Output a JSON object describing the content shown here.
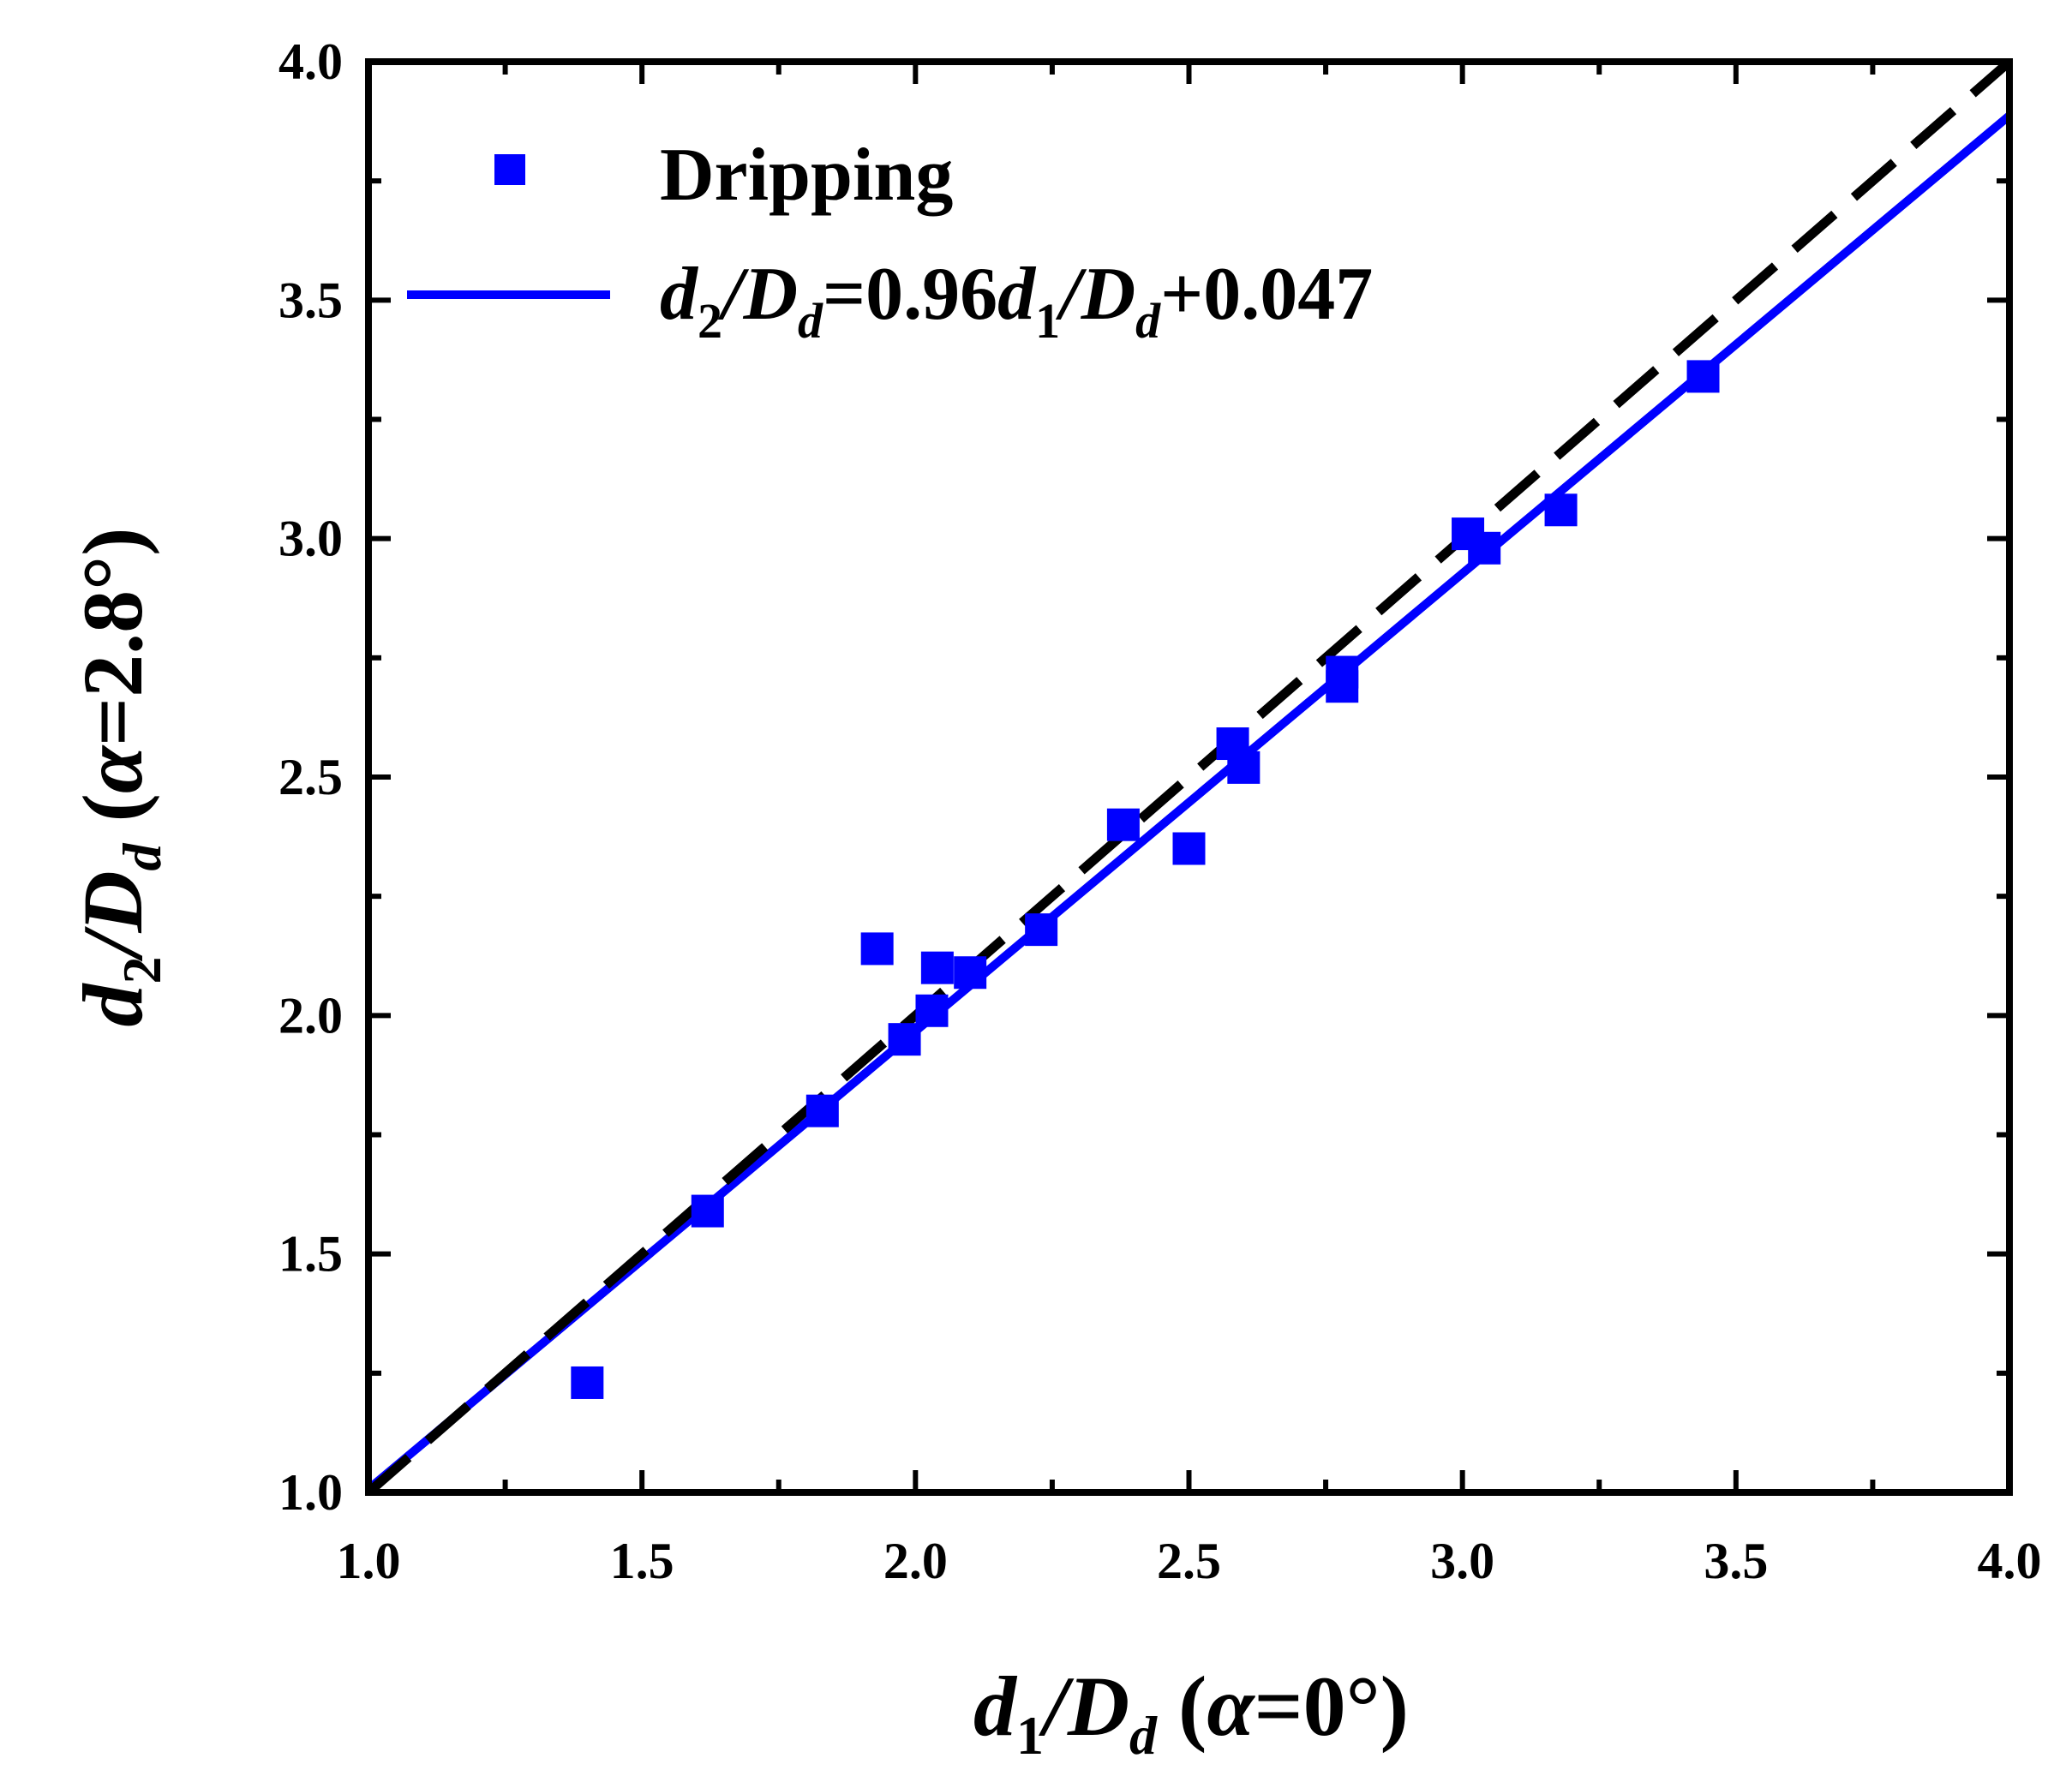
{
  "colors": {
    "series": "#0000ff",
    "reference_line": "#000000",
    "axes": "#000000",
    "background": "#ffffff"
  },
  "chart_data": {
    "type": "scatter",
    "xlabel": {
      "base": "d",
      "sub": "1",
      "rest": "/D",
      "sub2": "d",
      "paren": " (",
      "alpha": "α",
      "value": "=0°)"
    },
    "ylabel": {
      "base": "d",
      "sub": "2",
      "rest": "/D",
      "sub2": "d",
      "paren": " (",
      "alpha": "α",
      "value": "=2.8°)"
    },
    "xlim": [
      1.0,
      4.0
    ],
    "ylim": [
      1.0,
      4.0
    ],
    "xticks": [
      "1.0",
      "1.5",
      "2.0",
      "2.5",
      "3.0",
      "3.5",
      "4.0"
    ],
    "yticks": [
      "1.0",
      "1.5",
      "2.0",
      "2.5",
      "3.0",
      "3.5",
      "4.0"
    ],
    "grid": false,
    "legend_position": "top-left",
    "legend": {
      "marker_label": "Dripping",
      "fit_label": {
        "d2": "d",
        "d2_sub": "2",
        "slash1": "/D",
        "dd1_sub": "d",
        "eq": "=0.96",
        "d1": "d",
        "d1_sub": "1",
        "slash2": "/D",
        "dd2_sub": "d",
        "tail": "+0.047"
      }
    },
    "series": [
      {
        "name": "Dripping",
        "kind": "scatter",
        "marker": "square",
        "points": [
          [
            1.4,
            1.23
          ],
          [
            1.62,
            1.59
          ],
          [
            1.83,
            1.8
          ],
          [
            1.93,
            2.14
          ],
          [
            1.98,
            1.95
          ],
          [
            2.03,
            2.01
          ],
          [
            2.04,
            2.1
          ],
          [
            2.1,
            2.09
          ],
          [
            2.23,
            2.18
          ],
          [
            2.38,
            2.4
          ],
          [
            2.5,
            2.35
          ],
          [
            2.58,
            2.57
          ],
          [
            2.6,
            2.52
          ],
          [
            2.78,
            2.69
          ],
          [
            2.78,
            2.72
          ],
          [
            3.01,
            3.01
          ],
          [
            3.04,
            2.98
          ],
          [
            3.18,
            3.06
          ],
          [
            3.44,
            3.34
          ]
        ]
      },
      {
        "name": "d2/Dd=0.96d1/Dd+0.047",
        "kind": "line",
        "slope": 0.96,
        "intercept": 0.047,
        "x_range": [
          1.0,
          4.0
        ]
      },
      {
        "kind": "line",
        "style": "dashed",
        "slope": 1.0,
        "intercept": 0.0,
        "x_range": [
          1.0,
          4.0
        ]
      }
    ]
  }
}
